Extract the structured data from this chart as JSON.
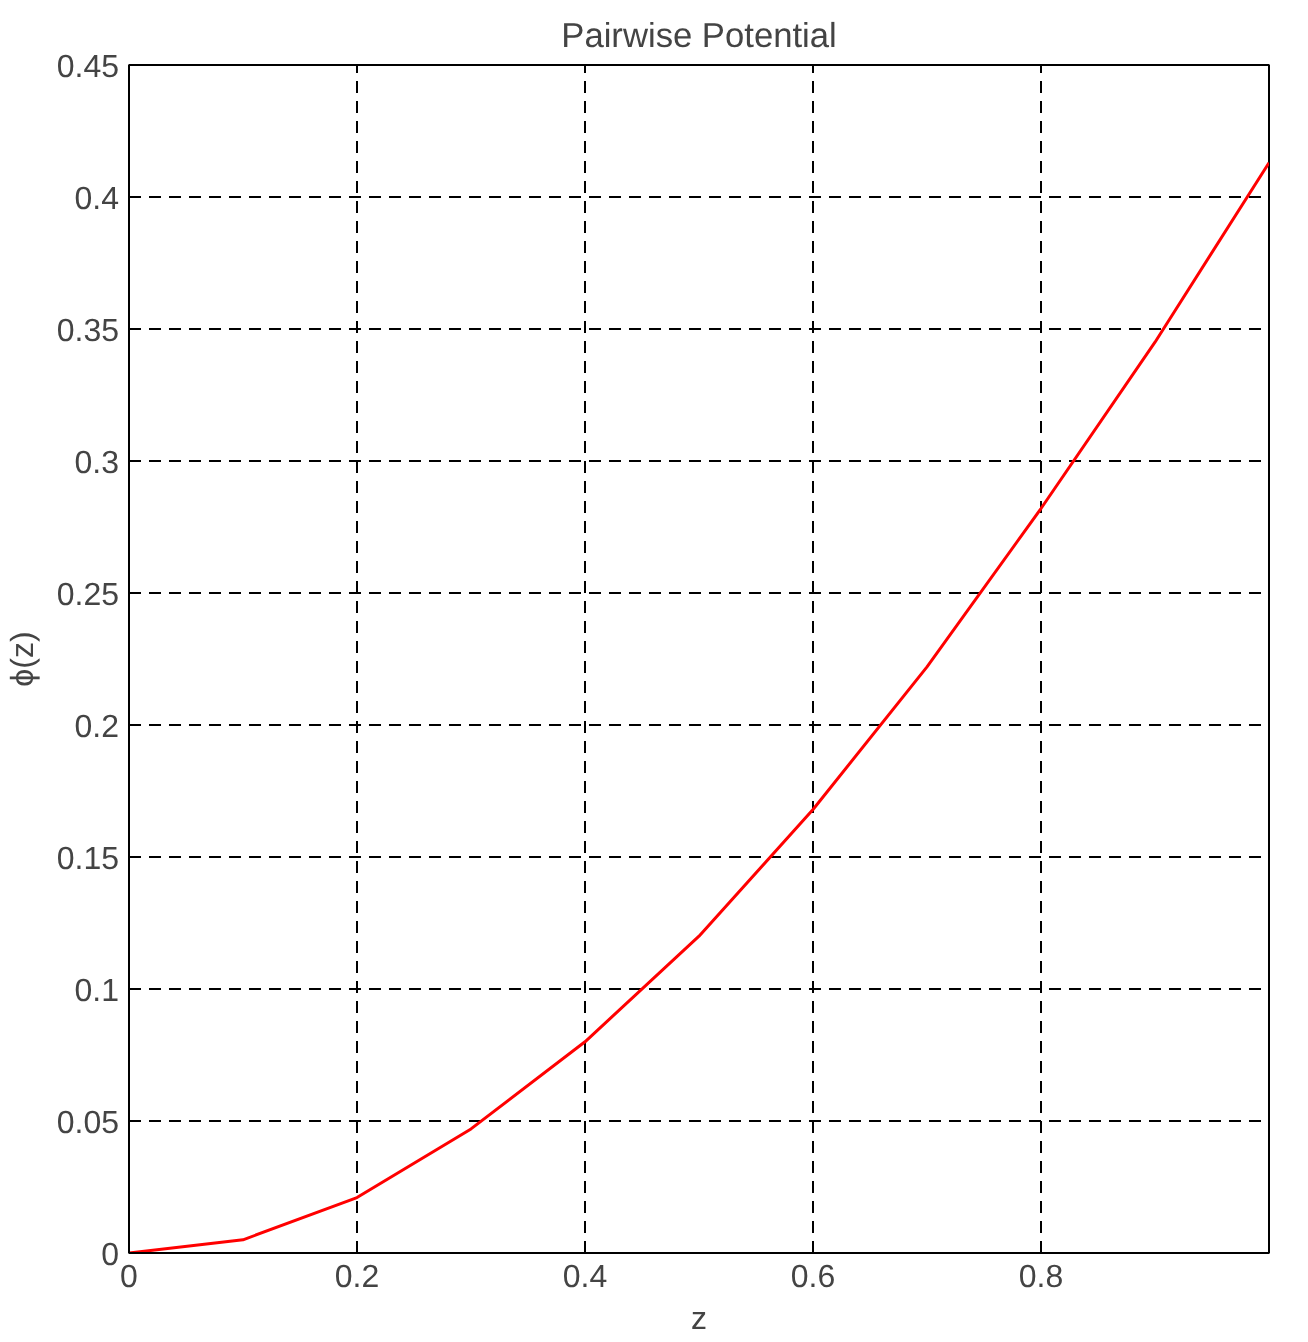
{
  "chart_data": {
    "type": "line",
    "title": "Pairwise Potential",
    "xlabel": "z",
    "ylabel": "ϕ(z)",
    "x": [
      0,
      0.1,
      0.2,
      0.3,
      0.4,
      0.5,
      0.6,
      0.7,
      0.8,
      0.9,
      1.0
    ],
    "series": [
      {
        "color": "#ff0000",
        "values": [
          0,
          0.005,
          0.021,
          0.047,
          0.08,
          0.12,
          0.168,
          0.222,
          0.282,
          0.345,
          0.413
        ]
      }
    ],
    "xlim": [
      0,
      1
    ],
    "ylim": [
      0,
      0.45
    ],
    "xticks": [
      0,
      0.2,
      0.4,
      0.6,
      0.8
    ],
    "yticks": [
      0,
      0.05,
      0.1,
      0.15,
      0.2,
      0.25,
      0.3,
      0.35,
      0.4,
      0.45
    ],
    "grid": true,
    "marker": "none",
    "line_style": "solid"
  }
}
